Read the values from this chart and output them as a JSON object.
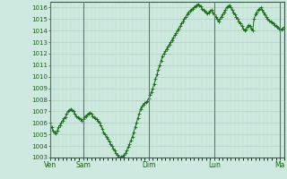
{
  "title": "",
  "ylabel": "",
  "xlabel": "",
  "bg_color": "#ceeae0",
  "plot_bg_color": "#ceeae0",
  "line_color": "#1a6b1a",
  "marker_color": "#1a6b1a",
  "grid_color_major": "#a8c8b8",
  "grid_color_minor": "#b8d8c8",
  "tick_label_color": "#1a5c1a",
  "day_line_color": "#5a7a6a",
  "spine_color": "#3a5a4a",
  "ylim": [
    1003,
    1016.5
  ],
  "yticks": [
    1003,
    1004,
    1005,
    1006,
    1007,
    1008,
    1009,
    1010,
    1011,
    1012,
    1013,
    1014,
    1015,
    1016
  ],
  "day_labels": [
    "Ven",
    "Sam",
    "Dim",
    "Lun",
    "Ma"
  ],
  "day_positions": [
    0,
    24,
    72,
    120,
    168
  ],
  "pressure_data": [
    1006.0,
    1005.6,
    1005.3,
    1005.2,
    1005.1,
    1005.3,
    1005.6,
    1005.8,
    1006.0,
    1006.2,
    1006.4,
    1006.5,
    1006.8,
    1007.0,
    1007.1,
    1007.2,
    1007.1,
    1007.0,
    1006.8,
    1006.6,
    1006.5,
    1006.4,
    1006.3,
    1006.2,
    1006.3,
    1006.5,
    1006.6,
    1006.7,
    1006.8,
    1006.9,
    1006.8,
    1006.6,
    1006.5,
    1006.4,
    1006.3,
    1006.2,
    1006.0,
    1005.8,
    1005.5,
    1005.2,
    1005.0,
    1004.8,
    1004.6,
    1004.4,
    1004.2,
    1004.0,
    1003.8,
    1003.6,
    1003.4,
    1003.2,
    1003.1,
    1003.0,
    1003.05,
    1003.1,
    1003.2,
    1003.4,
    1003.6,
    1003.9,
    1004.2,
    1004.5,
    1004.8,
    1005.2,
    1005.6,
    1006.0,
    1006.4,
    1006.8,
    1007.2,
    1007.4,
    1007.6,
    1007.7,
    1007.8,
    1007.9,
    1008.1,
    1008.4,
    1008.7,
    1009.0,
    1009.4,
    1009.8,
    1010.2,
    1010.6,
    1011.0,
    1011.4,
    1011.8,
    1012.0,
    1012.2,
    1012.4,
    1012.6,
    1012.8,
    1013.0,
    1013.2,
    1013.4,
    1013.6,
    1013.8,
    1014.0,
    1014.2,
    1014.4,
    1014.6,
    1014.8,
    1015.0,
    1015.2,
    1015.4,
    1015.6,
    1015.7,
    1015.8,
    1015.9,
    1016.0,
    1016.1,
    1016.2,
    1016.3,
    1016.2,
    1016.1,
    1015.9,
    1015.8,
    1015.7,
    1015.6,
    1015.5,
    1015.6,
    1015.7,
    1015.8,
    1015.6,
    1015.4,
    1015.2,
    1015.0,
    1014.8,
    1015.0,
    1015.2,
    1015.4,
    1015.6,
    1015.8,
    1016.0,
    1016.1,
    1016.2,
    1016.0,
    1015.8,
    1015.6,
    1015.4,
    1015.2,
    1015.0,
    1014.8,
    1014.6,
    1014.4,
    1014.2,
    1014.0,
    1014.1,
    1014.3,
    1014.5,
    1014.4,
    1014.2,
    1014.0,
    1015.0,
    1015.4,
    1015.6,
    1015.8,
    1015.9,
    1016.0,
    1015.8,
    1015.6,
    1015.4,
    1015.2,
    1015.0,
    1014.9,
    1014.8,
    1014.7,
    1014.6,
    1014.5,
    1014.4,
    1014.3,
    1014.2,
    1014.15,
    1014.1,
    1014.2,
    1014.3
  ]
}
